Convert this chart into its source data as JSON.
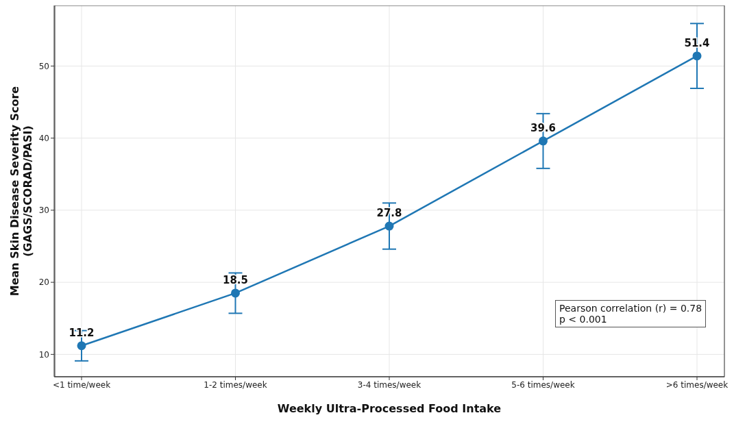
{
  "chart_data": {
    "type": "line",
    "xlabel": "Weekly Ultra-Processed Food Intake",
    "ylabel": "Mean Skin Disease Severity Score\n(GAGS/SCORAD/PASI)",
    "categories": [
      "<1 time/week",
      "1-2 times/week",
      "3-4 times/week",
      "5-6 times/week",
      ">6 times/week"
    ],
    "series": [
      {
        "color": "#1f77b4",
        "values": [
          11.2,
          18.5,
          27.8,
          39.6,
          51.4
        ],
        "errors": [
          2.1,
          2.8,
          3.2,
          3.8,
          4.5
        ]
      }
    ],
    "ylim": [
      6.9,
      58.4
    ],
    "yticks": [
      10,
      20,
      30,
      40,
      50
    ],
    "grid": true,
    "marker": "circle",
    "line_style": "solid",
    "data_labels": true,
    "annotations": [
      "Pearson correlation (r) = 0.78\np < 0.001"
    ]
  }
}
